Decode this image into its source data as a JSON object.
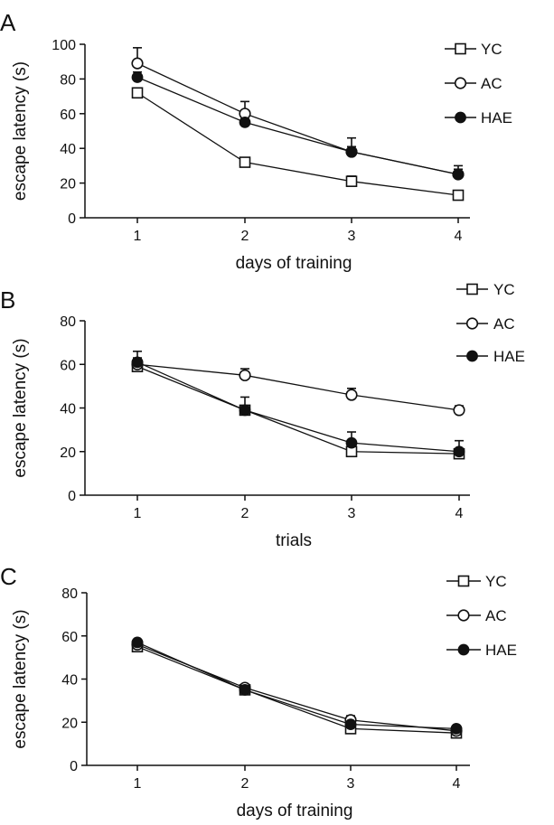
{
  "chart_data": [
    {
      "type": "line",
      "panel_label": "A",
      "x": [
        1,
        2,
        3,
        4
      ],
      "xlabel": "days of training",
      "ylabel": "escape latency (s)",
      "ylim": [
        0,
        100
      ],
      "yticks": [
        0,
        20,
        40,
        60,
        80,
        100
      ],
      "legend_position": "top-right",
      "series": [
        {
          "name": "YC",
          "marker": "open-square",
          "values": [
            72,
            32,
            21,
            13
          ],
          "err": [
            2,
            2,
            3,
            2
          ]
        },
        {
          "name": "AC",
          "marker": "open-circle",
          "values": [
            89,
            60,
            38,
            25
          ],
          "err": [
            9,
            7,
            8,
            5
          ]
        },
        {
          "name": "HAE",
          "marker": "filled-circle",
          "values": [
            81,
            55,
            38,
            25
          ],
          "err": [
            3,
            2,
            3,
            3
          ]
        }
      ]
    },
    {
      "type": "line",
      "panel_label": "B",
      "x": [
        1,
        2,
        3,
        4
      ],
      "xlabel": "trials",
      "ylabel": "escape latency (s)",
      "ylim": [
        0,
        80
      ],
      "yticks": [
        0,
        20,
        40,
        60,
        80
      ],
      "legend_position": "top-right",
      "series": [
        {
          "name": "YC",
          "marker": "open-square",
          "values": [
            59,
            39,
            20,
            19
          ],
          "err": [
            2,
            2,
            2,
            2
          ]
        },
        {
          "name": "AC",
          "marker": "open-circle",
          "values": [
            60,
            55,
            46,
            39
          ],
          "err": [
            3,
            3,
            3,
            2
          ]
        },
        {
          "name": "HAE",
          "marker": "filled-circle",
          "values": [
            61,
            39,
            24,
            20
          ],
          "err": [
            5,
            6,
            5,
            5
          ]
        }
      ]
    },
    {
      "type": "line",
      "panel_label": "C",
      "x": [
        1,
        2,
        3,
        4
      ],
      "xlabel": "days of training",
      "ylabel": "escape latency (s)",
      "ylim": [
        0,
        80
      ],
      "yticks": [
        0,
        20,
        40,
        60,
        80
      ],
      "legend_position": "top-right",
      "series": [
        {
          "name": "YC",
          "marker": "open-square",
          "values": [
            55,
            35,
            17,
            15
          ],
          "err": [
            1,
            1,
            1,
            1
          ]
        },
        {
          "name": "AC",
          "marker": "open-circle",
          "values": [
            56,
            36,
            21,
            16
          ],
          "err": [
            1,
            1,
            2,
            1
          ]
        },
        {
          "name": "HAE",
          "marker": "filled-circle",
          "values": [
            57,
            35,
            19,
            17
          ],
          "err": [
            1,
            2,
            1,
            1
          ]
        }
      ]
    }
  ]
}
